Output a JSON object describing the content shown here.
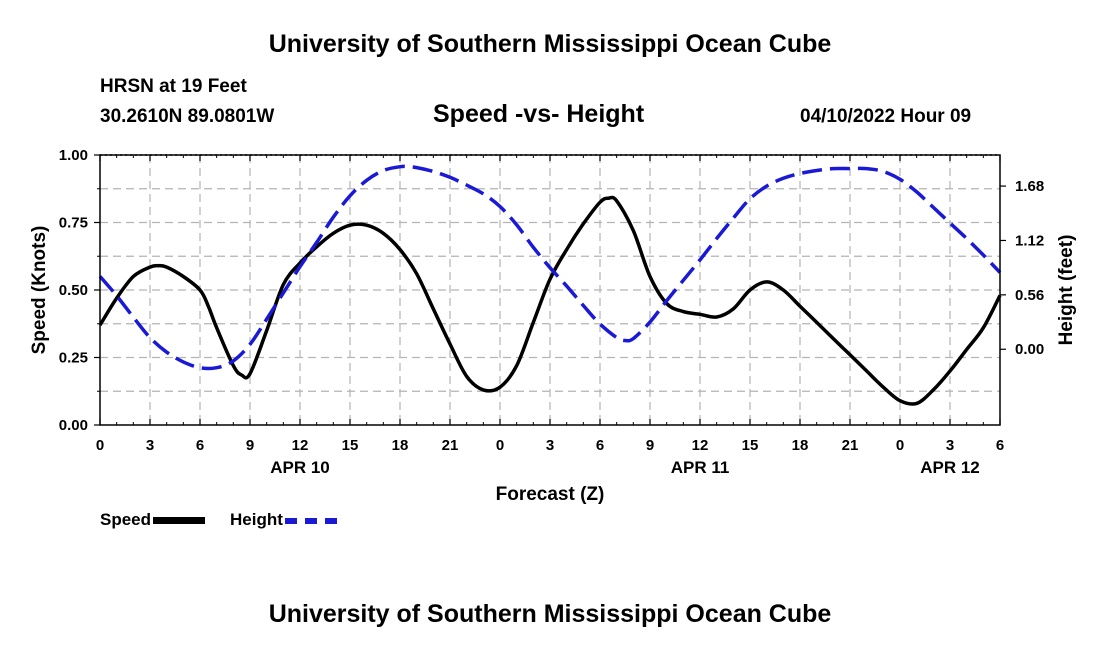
{
  "page": {
    "title_top": "University of Southern Mississippi Ocean Cube",
    "title_bottom": "University of Southern Mississippi Ocean Cube",
    "station": "HRSN at 19 Feet",
    "coords": "30.2610N  89.0801W",
    "subtitle": "Speed -vs- Height",
    "datetime": "04/10/2022 Hour 09"
  },
  "legend": {
    "speed": "Speed",
    "height": "Height"
  },
  "colors": {
    "speed": "#000000",
    "height": "#1a1ad6",
    "grid": "#b4b4b4"
  },
  "chart_data": {
    "type": "line",
    "title": "Speed -vs- Height",
    "xlabel": "Forecast (Z)",
    "ylabel": "Speed (Knots)",
    "y2label": "Height (feet)",
    "xlim": [
      0,
      54
    ],
    "ylim": [
      0,
      1
    ],
    "y2lim": [
      -0.78,
      2.0
    ],
    "x_tick_values": [
      0,
      3,
      6,
      9,
      12,
      15,
      18,
      21,
      24,
      27,
      30,
      33,
      36,
      39,
      42,
      45,
      48,
      51,
      54
    ],
    "x_tick_labels": [
      "0",
      "3",
      "6",
      "9",
      "12",
      "15",
      "18",
      "21",
      "0",
      "3",
      "6",
      "9",
      "12",
      "15",
      "18",
      "21",
      "0",
      "3",
      "6"
    ],
    "date_labels": [
      {
        "x": 12,
        "label": "APR 10"
      },
      {
        "x": 36,
        "label": "APR 11"
      },
      {
        "x": 51,
        "label": "APR 12"
      }
    ],
    "y_ticks": [
      "0.00",
      "0.25",
      "0.50",
      "0.75",
      "1.00"
    ],
    "y_tick_values": [
      0,
      0.25,
      0.5,
      0.75,
      1.0
    ],
    "y2_ticks": [
      "0.00",
      "0.56",
      "1.12",
      "1.68"
    ],
    "y2_tick_values": [
      0,
      0.56,
      1.12,
      1.68
    ],
    "series": [
      {
        "name": "Speed",
        "axis": "left",
        "style": "solid",
        "x": [
          0,
          1,
          2,
          3,
          3.5,
          4,
          5,
          6,
          6.5,
          7,
          8,
          8.5,
          9,
          10,
          11,
          12,
          13,
          14,
          15,
          16,
          17,
          18,
          19,
          20,
          21,
          22,
          23,
          24,
          25,
          26,
          27,
          28,
          29,
          30,
          30.5,
          31,
          32,
          33,
          34,
          35,
          36,
          37,
          38,
          39,
          40,
          41,
          42,
          43,
          44,
          45,
          46,
          47,
          48,
          49,
          50,
          51,
          52,
          53,
          54
        ],
        "values": [
          0.37,
          0.47,
          0.55,
          0.585,
          0.59,
          0.585,
          0.55,
          0.5,
          0.44,
          0.36,
          0.22,
          0.185,
          0.19,
          0.35,
          0.52,
          0.6,
          0.66,
          0.71,
          0.74,
          0.74,
          0.71,
          0.65,
          0.56,
          0.43,
          0.3,
          0.18,
          0.13,
          0.14,
          0.22,
          0.38,
          0.54,
          0.65,
          0.745,
          0.825,
          0.84,
          0.83,
          0.72,
          0.55,
          0.45,
          0.42,
          0.41,
          0.4,
          0.43,
          0.5,
          0.53,
          0.5,
          0.44,
          0.38,
          0.32,
          0.26,
          0.2,
          0.14,
          0.09,
          0.08,
          0.13,
          0.2,
          0.28,
          0.36,
          0.48
        ]
      },
      {
        "name": "Height",
        "axis": "right",
        "style": "dashed",
        "x": [
          0,
          1,
          2,
          3,
          4,
          5,
          6,
          7,
          8,
          9,
          10,
          11,
          12,
          13,
          14,
          15,
          16,
          17,
          18,
          18.5,
          19,
          20,
          21,
          22,
          23,
          24,
          25,
          26,
          27,
          28,
          29,
          30,
          31,
          31.5,
          32,
          33,
          34,
          35,
          36,
          37,
          38,
          39,
          40,
          41,
          42,
          43,
          44,
          45,
          46,
          47,
          48,
          49,
          50,
          51,
          52,
          53,
          54
        ],
        "values": [
          0.75,
          0.55,
          0.33,
          0.12,
          -0.03,
          -0.13,
          -0.19,
          -0.19,
          -0.12,
          0.05,
          0.31,
          0.58,
          0.85,
          1.1,
          1.36,
          1.58,
          1.74,
          1.84,
          1.88,
          1.88,
          1.87,
          1.83,
          1.77,
          1.69,
          1.6,
          1.47,
          1.28,
          1.05,
          0.84,
          0.65,
          0.45,
          0.26,
          0.12,
          0.09,
          0.11,
          0.28,
          0.5,
          0.71,
          0.92,
          1.14,
          1.35,
          1.55,
          1.68,
          1.76,
          1.81,
          1.84,
          1.86,
          1.86,
          1.86,
          1.83,
          1.75,
          1.62,
          1.46,
          1.3,
          1.14,
          0.97,
          0.79
        ]
      }
    ]
  }
}
